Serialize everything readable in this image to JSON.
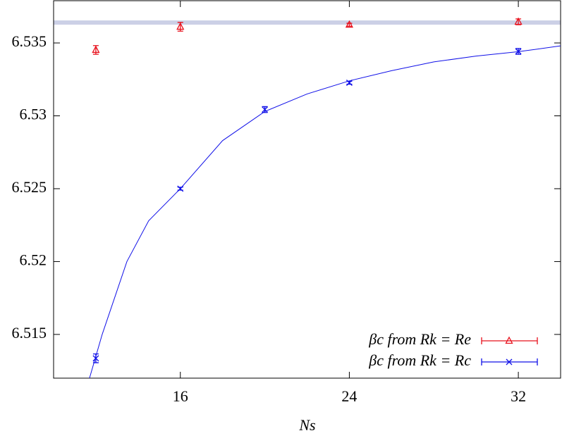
{
  "chart_data": {
    "type": "errorbar",
    "xlabel": "Ns",
    "xlim": [
      10,
      34
    ],
    "xticks": [
      16,
      24,
      32
    ],
    "ylim": [
      6.512,
      6.5379
    ],
    "yticks": [
      6.515,
      6.52,
      6.525,
      6.53,
      6.535
    ],
    "reference_line": {
      "value": 6.5364,
      "color": "#ccd0e6"
    },
    "legend": "lower right",
    "series": [
      {
        "name": "βc from Rk = Re",
        "color": "#e8101c",
        "marker": "triangle",
        "x": [
          12,
          16,
          24,
          32
        ],
        "values": [
          6.53452,
          6.53611,
          6.53625,
          6.53645
        ],
        "errors": [
          0.0003,
          0.0003,
          0.0001,
          0.0002
        ]
      },
      {
        "name": "βc from Rk = Rc",
        "color": "#1010e8",
        "marker": "x",
        "x": [
          12,
          16,
          20,
          24,
          32
        ],
        "values": [
          6.51336,
          6.525,
          6.53043,
          6.53227,
          6.53442
        ],
        "errors": [
          0.0003,
          0.0001,
          0.0002,
          0.0001,
          0.0002
        ]
      }
    ],
    "fit": {
      "color": "#1010e8",
      "x": [
        11.7,
        12.3,
        13.47,
        14.5,
        16,
        18,
        20,
        22,
        24,
        26,
        28,
        30,
        32,
        34
      ],
      "values": [
        6.512,
        6.515,
        6.52,
        6.5228,
        6.525,
        6.5283,
        6.5303,
        6.5315,
        6.5324,
        6.5331,
        6.5337,
        6.5341,
        6.5344,
        6.5348
      ]
    }
  }
}
